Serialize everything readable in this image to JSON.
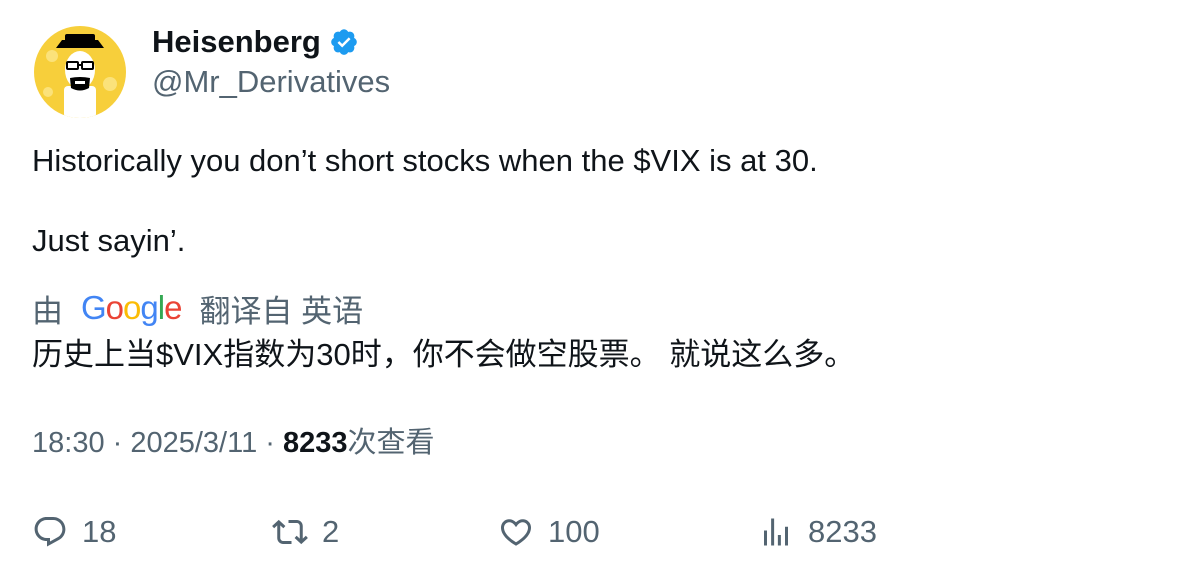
{
  "author": {
    "display_name": "Heisenberg",
    "handle": "@Mr_Derivatives",
    "verified_icon": "verified-badge-icon",
    "avatar_icon": "heisenberg-avatar-icon",
    "accent_color": "#1d9bf0",
    "avatar_bg": "#f7cf3b"
  },
  "tweet": {
    "line1": "Historically you don’t short stocks when the $VIX is at 30.",
    "line2": "Just sayin’."
  },
  "translation": {
    "prefix": "由",
    "provider_letters": [
      "G",
      "o",
      "o",
      "g",
      "l",
      "e"
    ],
    "suffix": "翻译自 英语",
    "text": "历史上当$VIX指数为30时，你不会做空股票。 就说这么多。"
  },
  "meta": {
    "time": "18:30",
    "separator": " · ",
    "date": "2025/3/11",
    "views_count": "8233",
    "views_label": "次查看"
  },
  "actions": {
    "reply_count": "18",
    "retweet_count": "2",
    "like_count": "100",
    "views_count": "8233"
  }
}
